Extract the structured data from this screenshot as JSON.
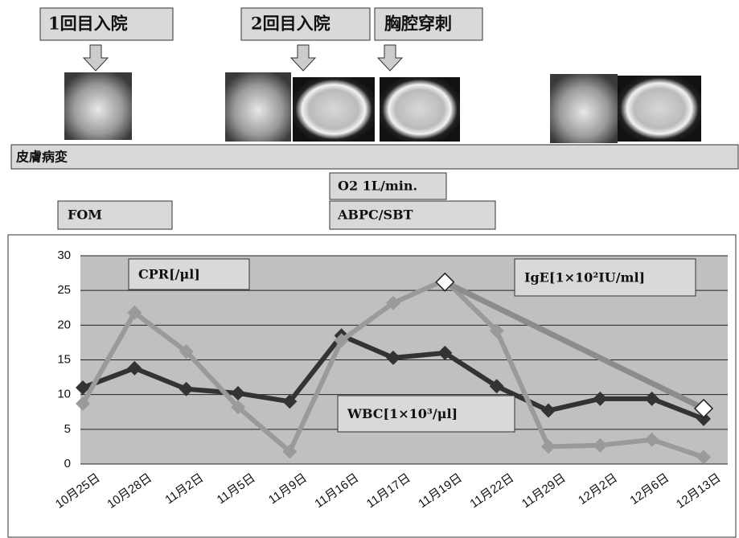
{
  "timeline": {
    "events": [
      "1回目入院",
      "2回目入院",
      "胸腔穿刺"
    ],
    "bars": [
      "皮膚病変",
      "O2 1L/min.",
      "ABPC/SBT",
      "FOM"
    ]
  },
  "chart_data": {
    "type": "line",
    "categories": [
      "10月25日",
      "10月28日",
      "11月2日",
      "11月5日",
      "11月9日",
      "11月16日",
      "11月17日",
      "11月19日",
      "11月22日",
      "11月29日",
      "12月2日",
      "12月6日",
      "12月13日"
    ],
    "series": [
      {
        "name": "WBC[1×10³/μl]",
        "color": "#333333",
        "values": [
          11,
          13.8,
          10.8,
          10.2,
          9,
          18.5,
          15.3,
          16,
          11.2,
          7.7,
          9.4,
          9.4,
          6.5
        ]
      },
      {
        "name": "CPR[/μl]",
        "color": "#9a9a9a",
        "values": [
          8.7,
          21.8,
          16.2,
          8.2,
          1.8,
          17.8,
          23.2,
          26.5,
          19.2,
          2.5,
          2.7,
          3.5,
          1.0
        ]
      },
      {
        "name": "IgE[1×10²IU/ml]",
        "color": "#8c8c8c",
        "values": [
          null,
          null,
          null,
          null,
          null,
          null,
          null,
          26.2,
          null,
          null,
          null,
          null,
          8
        ]
      }
    ],
    "ylim": [
      0,
      30
    ],
    "yticks": [
      0,
      5,
      10,
      15,
      20,
      25,
      30
    ],
    "grid": true
  }
}
